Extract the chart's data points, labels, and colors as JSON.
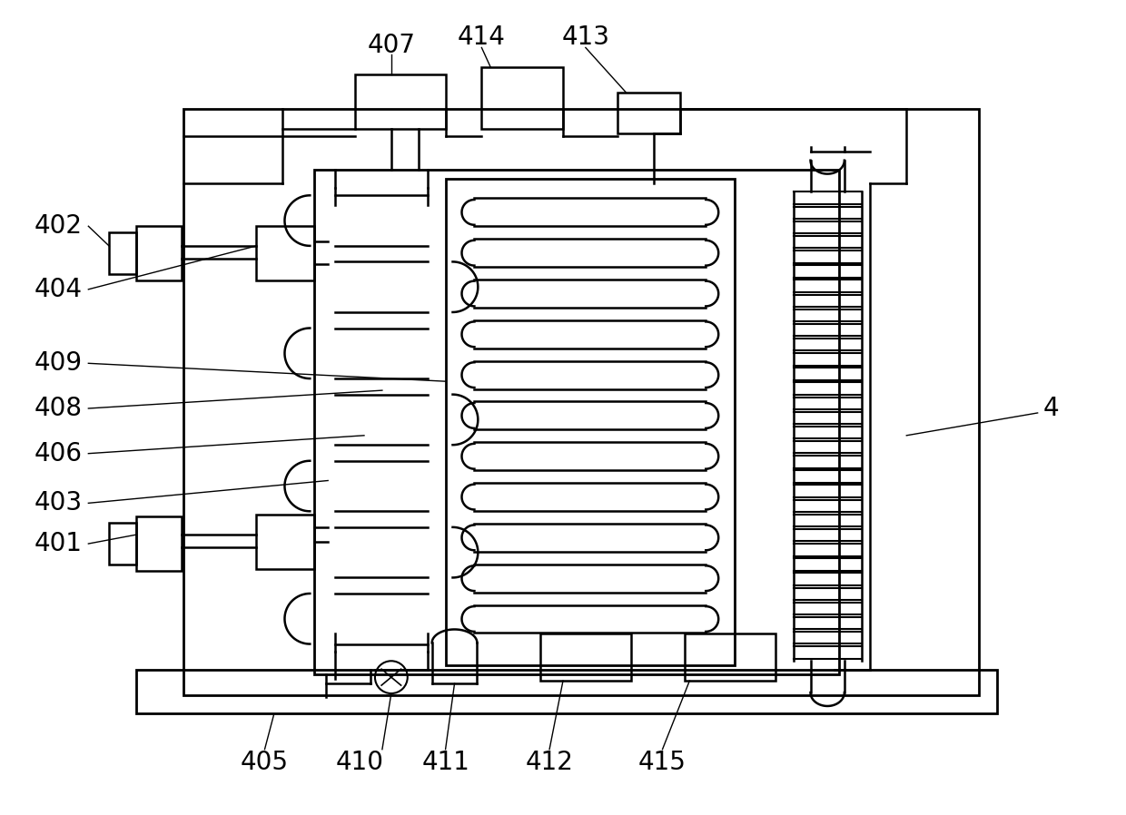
{
  "bg_color": "#ffffff",
  "line_color": "#000000",
  "fig_width": 12.4,
  "fig_height": 8.98
}
